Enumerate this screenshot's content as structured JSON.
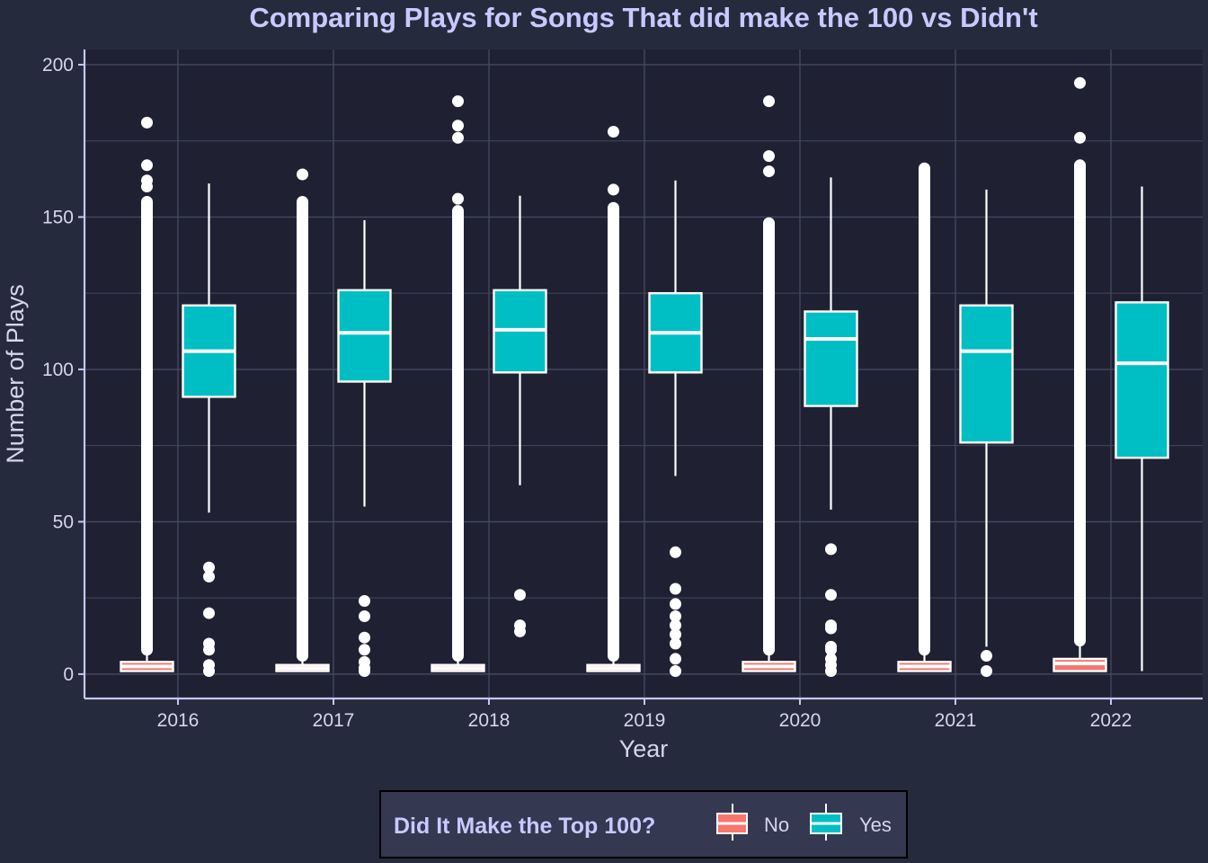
{
  "colors": {
    "page_background": "#262a3d",
    "panel_background": "#1f2133",
    "grid": "#44475e",
    "axis_line": "#c5c8f0",
    "title": "#c8caff",
    "text": "#d4d6ee",
    "box_no": "#f8766d",
    "box_yes": "#00bfc4",
    "box_outline": "#ffffff",
    "legend_background": "#343850",
    "legend_border": "#000000"
  },
  "chart_data": {
    "type": "box",
    "title": "Comparing Plays for Songs That did make the 100 vs Didn't",
    "xlabel": "Year",
    "ylabel": "Number of Plays",
    "ylim": [
      -8,
      205
    ],
    "yticks": [
      0,
      50,
      100,
      150,
      200
    ],
    "categories": [
      "2016",
      "2017",
      "2018",
      "2019",
      "2020",
      "2021",
      "2022"
    ],
    "grid": true,
    "legend": {
      "title": "Did It Make the Top 100?",
      "position": "bottom",
      "entries": [
        "No",
        "Yes"
      ]
    },
    "series": [
      {
        "name": "No",
        "boxes": [
          {
            "q1": 1,
            "median": 2.5,
            "q3": 4,
            "whisker_low": 1,
            "whisker_high": 8,
            "outlier_range": [
              8,
              155
            ],
            "outliers": [
              160,
              162,
              167,
              181
            ]
          },
          {
            "q1": 1,
            "median": 2,
            "q3": 3,
            "whisker_low": 1,
            "whisker_high": 6,
            "outlier_range": [
              6,
              155
            ],
            "outliers": [
              164
            ]
          },
          {
            "q1": 1,
            "median": 2,
            "q3": 3,
            "whisker_low": 1,
            "whisker_high": 6,
            "outlier_range": [
              6,
              152
            ],
            "outliers": [
              156,
              176,
              180,
              188
            ]
          },
          {
            "q1": 1,
            "median": 2,
            "q3": 3,
            "whisker_low": 1,
            "whisker_high": 6,
            "outlier_range": [
              6,
              153
            ],
            "outliers": [
              159,
              178
            ]
          },
          {
            "q1": 1,
            "median": 2.5,
            "q3": 4,
            "whisker_low": 1,
            "whisker_high": 8,
            "outlier_range": [
              8,
              148
            ],
            "outliers": [
              165,
              170,
              188
            ]
          },
          {
            "q1": 1,
            "median": 2.5,
            "q3": 4,
            "whisker_low": 1,
            "whisker_high": 8,
            "outlier_range": [
              8,
              166
            ],
            "outliers": []
          },
          {
            "q1": 1,
            "median": 3.5,
            "q3": 5,
            "whisker_low": 1,
            "whisker_high": 11,
            "outlier_range": [
              11,
              167
            ],
            "outliers": [
              176,
              194
            ]
          }
        ]
      },
      {
        "name": "Yes",
        "boxes": [
          {
            "q1": 91,
            "median": 106,
            "q3": 121,
            "whisker_low": 53,
            "whisker_high": 161,
            "outliers": [
              1,
              3,
              8,
              10,
              20,
              32,
              35
            ]
          },
          {
            "q1": 96,
            "median": 112,
            "q3": 126,
            "whisker_low": 55,
            "whisker_high": 149,
            "outliers": [
              1,
              2,
              4,
              8,
              12,
              19,
              24
            ]
          },
          {
            "q1": 99,
            "median": 113,
            "q3": 126,
            "whisker_low": 62,
            "whisker_high": 157,
            "outliers": [
              14,
              16,
              26
            ]
          },
          {
            "q1": 99,
            "median": 112,
            "q3": 125,
            "whisker_low": 65,
            "whisker_high": 162,
            "outliers": [
              1,
              5,
              10,
              13,
              16,
              19,
              23,
              28,
              40
            ]
          },
          {
            "q1": 88,
            "median": 110,
            "q3": 119,
            "whisker_low": 54,
            "whisker_high": 163,
            "outliers": [
              1,
              3,
              5,
              8,
              9,
              15,
              16,
              26,
              41
            ]
          },
          {
            "q1": 76,
            "median": 106,
            "q3": 121,
            "whisker_low": 9,
            "whisker_high": 159,
            "outliers": [
              1,
              6
            ]
          },
          {
            "q1": 71,
            "median": 102,
            "q3": 122,
            "whisker_low": 1,
            "whisker_high": 160,
            "outliers": []
          }
        ]
      }
    ]
  }
}
